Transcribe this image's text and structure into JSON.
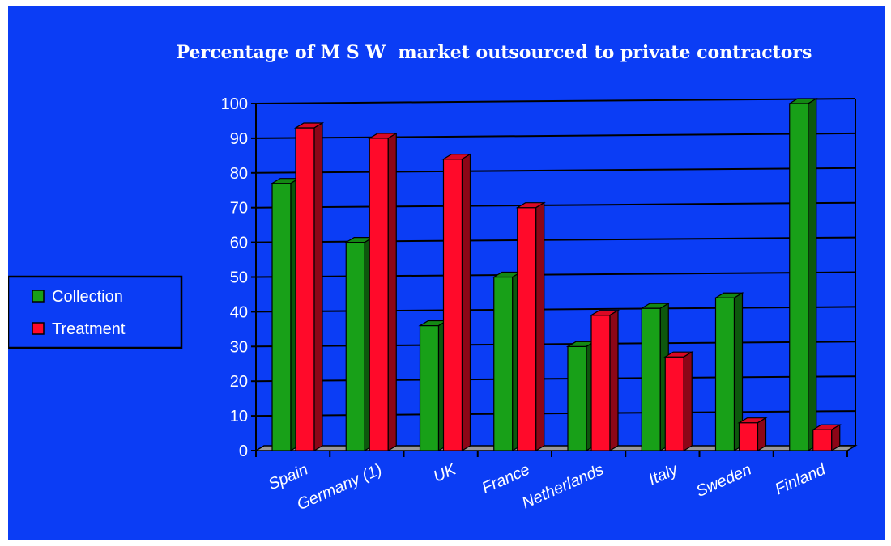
{
  "chart_data": {
    "type": "bar",
    "title": "Percentage of M S W  market outsourced to private contractors",
    "xlabel": "",
    "ylabel": "",
    "ylim": [
      0,
      100
    ],
    "yticks": [
      0,
      10,
      20,
      30,
      40,
      50,
      60,
      70,
      80,
      90,
      100
    ],
    "grid": true,
    "legend_position": "left",
    "categories": [
      "Spain",
      "Germany (1)",
      "UK",
      "France",
      "Netherlands",
      "Italy",
      "Sweden",
      "Finland"
    ],
    "series": [
      {
        "name": "Collection",
        "color": "#18a018",
        "values": [
          77,
          60,
          36,
          50,
          30,
          41,
          44,
          100
        ]
      },
      {
        "name": "Treatment",
        "color": "#ff0a2a",
        "values": [
          93,
          90,
          84,
          70,
          39,
          27,
          8,
          6
        ]
      }
    ]
  }
}
